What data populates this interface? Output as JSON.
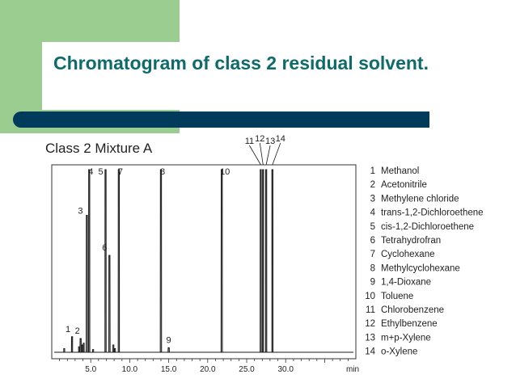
{
  "slide": {
    "title": "Chromatogram of class 2 residual solvent."
  },
  "chart_data": {
    "type": "line",
    "title": "Class 2 Mixture A",
    "xlabel": "min",
    "ylabel": "",
    "xlim": [
      0,
      39
    ],
    "xticks": [
      "5.0",
      "10.0",
      "15.0",
      "20.0",
      "25.0",
      "30.0"
    ],
    "ylim": [
      0,
      100
    ],
    "grid": false,
    "legend_position": "right",
    "peaks": [
      {
        "label": "1",
        "rt": 2.6,
        "height": 8.5,
        "width": 0.07
      },
      {
        "label": "2",
        "rt": 3.7,
        "height": 7.5,
        "width": 0.08
      },
      {
        "label": "3",
        "rt": 4.5,
        "height": 75,
        "width": 0.08
      },
      {
        "label": "4",
        "rt": 4.8,
        "height": 100,
        "width": 0.07
      },
      {
        "label": "5",
        "rt": 6.9,
        "height": 100,
        "width": 0.07
      },
      {
        "label": "6",
        "rt": 7.4,
        "height": 53,
        "width": 0.08
      },
      {
        "label": "7",
        "rt": 8.6,
        "height": 100,
        "width": 0.07
      },
      {
        "label": "8",
        "rt": 14.0,
        "height": 100,
        "width": 0.08
      },
      {
        "label": "9",
        "rt": 15.0,
        "height": 2.5,
        "width": 0.08
      },
      {
        "label": "10",
        "rt": 21.8,
        "height": 100,
        "width": 0.08
      },
      {
        "label": "11",
        "rt": 26.8,
        "height": 100,
        "width": 0.07
      },
      {
        "label": "12",
        "rt": 27.1,
        "height": 100,
        "width": 0.07
      },
      {
        "label": "13",
        "rt": 27.5,
        "height": 100,
        "width": 0.07
      },
      {
        "label": "14",
        "rt": 28.3,
        "height": 100,
        "width": 0.07
      }
    ],
    "minor_peaks": [
      {
        "rt": 1.6,
        "height": 2.0
      },
      {
        "rt": 3.5,
        "height": 3.0
      },
      {
        "rt": 3.9,
        "height": 4.0
      },
      {
        "rt": 4.1,
        "height": 5.0
      },
      {
        "rt": 5.3,
        "height": 1.5
      },
      {
        "rt": 7.9,
        "height": 4.0
      },
      {
        "rt": 8.1,
        "height": 2.0
      }
    ],
    "legend": [
      {
        "num": "1",
        "name": "Methanol"
      },
      {
        "num": "2",
        "name": "Acetonitrile"
      },
      {
        "num": "3",
        "name": "Methylene chloride"
      },
      {
        "num": "4",
        "name": "trans-1,2-Dichloroethene"
      },
      {
        "num": "5",
        "name": "cis-1,2-Dichloroethene"
      },
      {
        "num": "6",
        "name": "Tetrahydrofran"
      },
      {
        "num": "7",
        "name": "Cyclohexane"
      },
      {
        "num": "8",
        "name": "Methylcyclohexane"
      },
      {
        "num": "9",
        "name": "1,4-Dioxane"
      },
      {
        "num": "10",
        "name": "Toluene"
      },
      {
        "num": "11",
        "name": "Chlorobenzene"
      },
      {
        "num": "12",
        "name": "Ethylbenzene"
      },
      {
        "num": "13",
        "name": "m+p-Xylene"
      },
      {
        "num": "14",
        "name": "o-Xylene"
      }
    ],
    "colors": {
      "trace": "#1a1a1a",
      "axis": "#333333"
    }
  }
}
